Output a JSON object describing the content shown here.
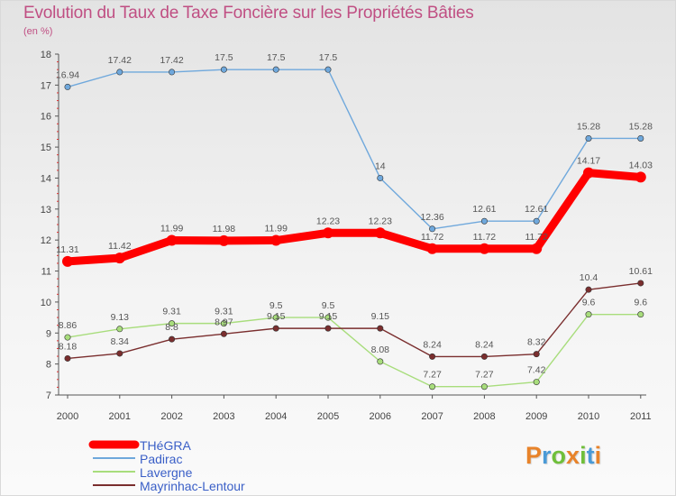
{
  "title": "Evolution du Taux de Taxe Foncière sur les Propriétés Bâties",
  "unit_label": "(en %)",
  "logo": {
    "text": "Proxiti",
    "colors": [
      "#e8832a",
      "#4a9ad6",
      "#6fbf3a",
      "#e8832a",
      "#6fbf3a",
      "#4a9ad6",
      "#e8832a"
    ]
  },
  "chart_data": {
    "type": "line",
    "title": "Evolution du Taux de Taxe Foncière sur les Propriétés Bâties",
    "ylabel": "(en %)",
    "xlabel": "",
    "ylim": [
      7,
      18
    ],
    "yticks": [
      "7",
      "8",
      "9",
      "10",
      "11",
      "12",
      "13",
      "14",
      "15",
      "16",
      "17",
      "18"
    ],
    "categories": [
      "2000",
      "2001",
      "2002",
      "2003",
      "2004",
      "2005",
      "2006",
      "2007",
      "2008",
      "2009",
      "2010",
      "2011"
    ],
    "series": [
      {
        "name": "THéGRA",
        "color": "#ff0000",
        "values": [
          11.31,
          11.42,
          11.99,
          11.98,
          11.99,
          12.23,
          12.23,
          11.72,
          11.72,
          11.72,
          14.17,
          14.03
        ],
        "labels": [
          "11.31",
          "11.42",
          "11.99",
          "11.98",
          "11.99",
          "12.23",
          "12.23",
          "11.72",
          "11.72",
          "11.72",
          "14.17",
          "14.03"
        ]
      },
      {
        "name": "Padirac",
        "color": "#6fa8dc",
        "values": [
          16.94,
          17.42,
          17.42,
          17.5,
          17.5,
          17.5,
          14,
          12.36,
          12.61,
          12.61,
          15.28,
          15.28
        ],
        "labels": [
          "16.94",
          "17.42",
          "17.42",
          "17.5",
          "17.5",
          "17.5",
          "14",
          "12.36",
          "12.61",
          "12.61",
          "15.28",
          "15.28"
        ]
      },
      {
        "name": "Lavergne",
        "color": "#a8dd7c",
        "values": [
          8.86,
          9.13,
          9.31,
          9.31,
          9.5,
          9.5,
          8.08,
          7.27,
          7.27,
          7.42,
          9.6,
          9.6
        ],
        "labels": [
          "8.86",
          "9.13",
          "9.31",
          "9.31",
          "9.5",
          "9.5",
          "8.08",
          "7.27",
          "7.27",
          "7.42",
          "9.6",
          "9.6"
        ]
      },
      {
        "name": "Mayrinhac-Lentour",
        "color": "#7a2e2e",
        "values": [
          8.18,
          8.34,
          8.8,
          8.97,
          9.15,
          9.15,
          9.15,
          8.24,
          8.24,
          8.32,
          10.4,
          10.61
        ],
        "labels": [
          "8.18",
          "8.34",
          "8.8",
          "8.97",
          "9.15",
          "9.15",
          "9.15",
          "8.24",
          "8.24",
          "8.32",
          "10.4",
          "10.61"
        ]
      }
    ],
    "legend": [
      "THéGRA",
      "Padirac",
      "Lavergne",
      "Mayrinhac-Lentour"
    ],
    "legend_position": "bottom-left",
    "grid": false
  }
}
